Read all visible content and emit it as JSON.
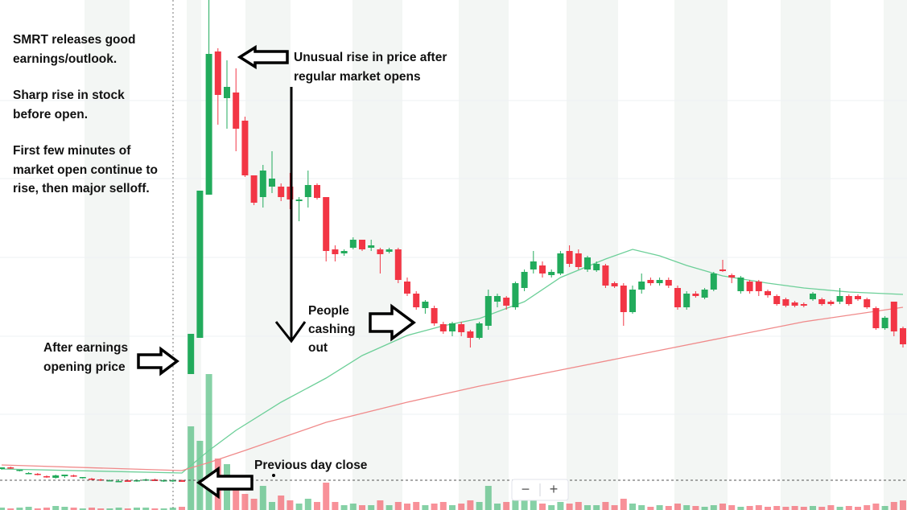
{
  "chart_data": {
    "type": "candlestick",
    "ylim": [
      0,
      63.4
    ],
    "gridlines": [
      50.9,
      41.2,
      31.4,
      21.6,
      11.9
    ],
    "up_color": "#22ab5c",
    "down_color": "#f23645",
    "ohlc": [
      [
        5.1,
        5.3,
        5.0,
        5.3
      ],
      [
        5.3,
        5.4,
        5.1,
        5.2
      ],
      [
        4.9,
        5.0,
        4.8,
        5.0
      ],
      [
        4.6,
        4.7,
        4.5,
        4.6
      ],
      [
        4.5,
        4.6,
        4.3,
        4.4
      ],
      [
        4.2,
        4.3,
        4.0,
        4.1
      ],
      [
        4.0,
        4.4,
        3.9,
        4.3
      ],
      [
        4.2,
        4.4,
        4.0,
        4.4
      ],
      [
        4.3,
        4.4,
        4.1,
        4.2
      ],
      [
        4.0,
        4.1,
        3.9,
        4.1
      ],
      [
        3.9,
        4.0,
        3.7,
        3.8
      ],
      [
        3.8,
        3.9,
        3.6,
        3.7
      ],
      [
        3.7,
        3.8,
        3.6,
        3.7
      ],
      [
        3.6,
        3.8,
        3.5,
        3.6
      ],
      [
        3.7,
        3.8,
        3.5,
        3.5
      ],
      [
        3.6,
        3.8,
        3.5,
        3.7
      ],
      [
        3.7,
        3.9,
        3.6,
        3.8
      ],
      [
        3.8,
        3.9,
        3.6,
        3.6
      ],
      [
        3.6,
        3.8,
        3.5,
        3.7
      ],
      [
        3.6,
        3.8,
        3.5,
        3.7
      ],
      [
        3.7,
        3.8,
        3.5,
        3.5
      ],
      [
        16.9,
        21.9,
        16.9,
        21.9
      ],
      [
        21.4,
        39.7,
        21.4,
        39.7
      ],
      [
        39.2,
        63.4,
        39.2,
        56.7
      ],
      [
        57.0,
        57.4,
        47.9,
        51.6
      ],
      [
        51.2,
        55.9,
        47.4,
        52.6
      ],
      [
        51.9,
        54.9,
        44.6,
        47.4
      ],
      [
        48.4,
        48.9,
        41.4,
        41.6
      ],
      [
        41.6,
        41.6,
        37.9,
        38.2
      ],
      [
        38.9,
        42.9,
        37.6,
        42.2
      ],
      [
        40.2,
        44.6,
        39.4,
        41.2
      ],
      [
        40.2,
        40.6,
        38.4,
        38.9
      ],
      [
        40.2,
        41.9,
        37.4,
        38.6
      ],
      [
        38.4,
        38.9,
        35.9,
        38.6
      ],
      [
        38.9,
        42.2,
        37.6,
        40.4
      ],
      [
        40.4,
        40.6,
        38.6,
        38.8
      ],
      [
        38.9,
        38.9,
        30.9,
        32.2
      ],
      [
        32.4,
        32.9,
        30.9,
        31.8
      ],
      [
        31.9,
        32.4,
        31.6,
        32.2
      ],
      [
        32.6,
        33.9,
        32.4,
        33.6
      ],
      [
        33.6,
        33.6,
        32.2,
        32.4
      ],
      [
        32.6,
        33.6,
        32.2,
        32.9
      ],
      [
        32.4,
        32.6,
        29.4,
        31.8
      ],
      [
        32.1,
        32.6,
        31.9,
        32.4
      ],
      [
        32.4,
        32.6,
        28.2,
        28.6
      ],
      [
        28.4,
        28.9,
        26.6,
        26.9
      ],
      [
        26.9,
        27.2,
        24.9,
        25.2
      ],
      [
        25.1,
        26.1,
        24.4,
        25.9
      ],
      [
        25.1,
        25.4,
        22.9,
        23.2
      ],
      [
        23.1,
        23.4,
        21.9,
        22.2
      ],
      [
        22.2,
        23.4,
        21.6,
        23.2
      ],
      [
        23.1,
        23.4,
        21.6,
        22.1
      ],
      [
        22.2,
        22.4,
        20.2,
        21.4
      ],
      [
        21.4,
        23.4,
        21.2,
        23.2
      ],
      [
        22.9,
        27.4,
        22.4,
        26.6
      ],
      [
        25.9,
        26.9,
        25.2,
        26.6
      ],
      [
        26.4,
        26.6,
        24.9,
        25.4
      ],
      [
        25.2,
        28.4,
        24.9,
        28.2
      ],
      [
        27.6,
        29.9,
        27.2,
        29.6
      ],
      [
        29.9,
        32.2,
        29.4,
        30.9
      ],
      [
        30.4,
        30.9,
        28.9,
        29.4
      ],
      [
        29.2,
        29.9,
        28.9,
        29.6
      ],
      [
        29.4,
        32.2,
        29.2,
        31.9
      ],
      [
        32.2,
        32.9,
        30.2,
        30.6
      ],
      [
        31.9,
        32.4,
        29.9,
        30.2
      ],
      [
        29.9,
        31.6,
        29.6,
        31.4
      ],
      [
        29.8,
        30.9,
        29.6,
        30.6
      ],
      [
        30.4,
        30.6,
        27.6,
        27.9
      ],
      [
        28.2,
        28.4,
        27.6,
        27.8
      ],
      [
        27.9,
        28.2,
        22.9,
        24.6
      ],
      [
        24.6,
        27.9,
        24.4,
        27.4
      ],
      [
        27.4,
        29.4,
        26.9,
        28.4
      ],
      [
        28.6,
        28.9,
        27.9,
        28.2
      ],
      [
        28.2,
        28.9,
        27.9,
        28.6
      ],
      [
        28.6,
        28.9,
        27.6,
        27.9
      ],
      [
        27.6,
        27.9,
        24.9,
        25.2
      ],
      [
        25.2,
        27.2,
        24.9,
        26.9
      ],
      [
        26.9,
        27.2,
        26.4,
        26.6
      ],
      [
        26.4,
        27.6,
        26.2,
        27.4
      ],
      [
        27.4,
        29.6,
        27.2,
        29.4
      ],
      [
        29.9,
        31.1,
        29.6,
        29.7
      ],
      [
        29.2,
        29.4,
        28.2,
        28.9
      ],
      [
        27.2,
        29.1,
        26.9,
        28.9
      ],
      [
        28.4,
        28.6,
        26.9,
        27.2
      ],
      [
        28.4,
        28.6,
        26.6,
        27.2
      ],
      [
        27.2,
        27.4,
        26.4,
        26.7
      ],
      [
        26.6,
        26.8,
        25.4,
        25.6
      ],
      [
        26.2,
        26.4,
        25.2,
        25.4
      ],
      [
        25.8,
        26.0,
        25.2,
        25.4
      ],
      [
        25.6,
        25.8,
        25.2,
        25.4
      ],
      [
        26.2,
        27.1,
        26.0,
        26.9
      ],
      [
        26.2,
        26.4,
        25.4,
        25.6
      ],
      [
        25.9,
        26.1,
        25.4,
        25.6
      ],
      [
        25.9,
        27.6,
        25.6,
        26.6
      ],
      [
        26.6,
        26.8,
        25.4,
        25.6
      ],
      [
        26.6,
        26.8,
        26.0,
        26.2
      ],
      [
        26.2,
        26.4,
        25.0,
        25.2
      ],
      [
        25.1,
        25.3,
        22.4,
        22.6
      ],
      [
        22.6,
        24.1,
        22.4,
        23.9
      ],
      [
        25.9,
        25.9,
        21.6,
        22.2
      ],
      [
        22.6,
        22.8,
        20.2,
        20.6
      ]
    ],
    "volume_ylim": [
      0,
      634
    ],
    "volume": [
      3,
      2,
      3,
      4,
      2,
      3,
      5,
      4,
      3,
      2,
      3,
      2,
      2,
      3,
      2,
      3,
      3,
      2,
      2,
      3,
      4,
      104,
      86,
      169,
      64,
      57,
      34,
      20,
      14,
      30,
      10,
      18,
      12,
      8,
      14,
      10,
      34,
      10,
      6,
      8,
      6,
      6,
      12,
      6,
      10,
      8,
      10,
      6,
      8,
      10,
      6,
      8,
      12,
      10,
      30,
      8,
      10,
      12,
      14,
      12,
      8,
      6,
      10,
      8,
      10,
      6,
      6,
      10,
      6,
      14,
      8,
      6,
      4,
      6,
      5,
      8,
      6,
      5,
      4,
      6,
      8,
      6,
      4,
      5,
      6,
      4,
      5,
      4,
      5,
      4,
      5,
      4,
      6,
      4,
      5,
      4,
      6,
      8,
      5,
      10,
      12
    ],
    "moving_averages": [
      {
        "color": "#6ccf98",
        "x": [
          0,
          20,
          23,
          26,
          31,
          36,
          40,
          45,
          49,
          53,
          58,
          62,
          67,
          70,
          73,
          76,
          80,
          85,
          89,
          94,
          100
        ],
        "values": [
          5.1,
          4.6,
          7.4,
          9.9,
          13.4,
          16.4,
          19.2,
          21.7,
          22.9,
          23.8,
          25.9,
          28.9,
          31.2,
          32.4,
          31.6,
          30.4,
          29.1,
          28.2,
          27.6,
          27.1,
          26.8
        ]
      },
      {
        "color": "#f08a8a",
        "x": [
          0,
          20,
          23,
          27,
          36,
          45,
          53,
          62,
          71,
          80,
          89,
          100
        ],
        "values": [
          5.6,
          4.9,
          5.9,
          7.4,
          10.9,
          13.4,
          15.4,
          17.4,
          19.4,
          21.4,
          23.4,
          25.2
        ]
      }
    ],
    "previous_close": 3.7,
    "annotations": [
      {
        "lines": [
          "SMRT releases good",
          "earnings/outlook."
        ]
      },
      {
        "lines": [
          "Sharp rise in stock",
          "before open."
        ]
      },
      {
        "lines": [
          "First few minutes of",
          "market open continue to",
          "rise, then major selloff."
        ]
      },
      {
        "lines": [
          "Unusual rise in price after",
          "regular market opens"
        ]
      },
      {
        "lines": [
          "People",
          "cashing",
          "out"
        ]
      },
      {
        "lines": [
          "After earnings",
          "opening price"
        ]
      },
      {
        "lines": [
          "Previous day close"
        ]
      }
    ],
    "zoom_controls": [
      "−",
      "+"
    ]
  }
}
